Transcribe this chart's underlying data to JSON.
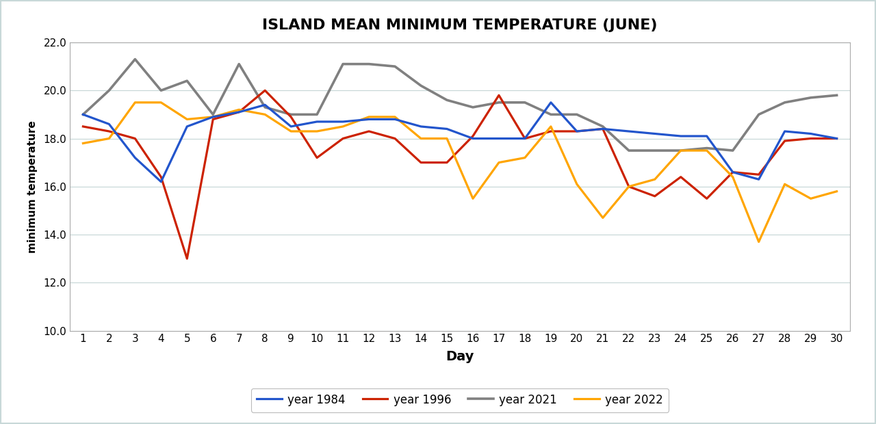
{
  "title": "ISLAND MEAN MINIMUM TEMPERATURE (JUNE)",
  "xlabel": "Day",
  "ylabel": "minimum temperature",
  "days": [
    1,
    2,
    3,
    4,
    5,
    6,
    7,
    8,
    9,
    10,
    11,
    12,
    13,
    14,
    15,
    16,
    17,
    18,
    19,
    20,
    21,
    22,
    23,
    24,
    25,
    26,
    27,
    28,
    29,
    30
  ],
  "year_1984": [
    19.0,
    18.6,
    17.2,
    16.2,
    18.5,
    18.9,
    19.1,
    19.4,
    18.5,
    18.7,
    18.7,
    18.8,
    18.8,
    18.5,
    18.4,
    18.0,
    18.0,
    18.0,
    19.5,
    18.3,
    18.4,
    18.3,
    18.2,
    18.1,
    18.1,
    16.6,
    16.3,
    18.3,
    18.2,
    18.0
  ],
  "year_1996": [
    18.5,
    18.3,
    18.0,
    16.4,
    13.0,
    18.8,
    19.1,
    20.0,
    18.9,
    17.2,
    18.0,
    18.3,
    18.0,
    17.0,
    17.0,
    18.1,
    19.8,
    18.0,
    18.3,
    18.3,
    18.4,
    16.0,
    15.6,
    16.4,
    15.5,
    16.6,
    16.5,
    17.9,
    18.0,
    18.0
  ],
  "year_2021": [
    19.0,
    20.0,
    21.3,
    20.0,
    20.4,
    19.0,
    21.1,
    19.3,
    19.0,
    19.0,
    21.1,
    21.1,
    21.0,
    20.2,
    19.6,
    19.3,
    19.5,
    19.5,
    19.0,
    19.0,
    18.5,
    17.5,
    17.5,
    17.5,
    17.6,
    17.5,
    19.0,
    19.5,
    19.7,
    19.8
  ],
  "year_2022": [
    17.8,
    18.0,
    19.5,
    19.5,
    18.8,
    18.9,
    19.2,
    19.0,
    18.3,
    18.3,
    18.5,
    18.9,
    18.9,
    18.0,
    18.0,
    15.5,
    17.0,
    17.2,
    18.5,
    16.1,
    14.7,
    16.0,
    16.3,
    17.5,
    17.5,
    16.4,
    13.7,
    16.1,
    15.5,
    15.8
  ],
  "color_1984": "#2255CC",
  "color_1996": "#CC2200",
  "color_2021": "#808080",
  "color_2022": "#FFA500",
  "ylim_min": 10.0,
  "ylim_max": 22.0,
  "yticks": [
    10.0,
    12.0,
    14.0,
    16.0,
    18.0,
    20.0,
    22.0
  ],
  "background_color": "#ffffff",
  "plot_bg_color": "#ffffff",
  "border_color": "#C8D8D8",
  "grid_color": "#C8D8D8"
}
